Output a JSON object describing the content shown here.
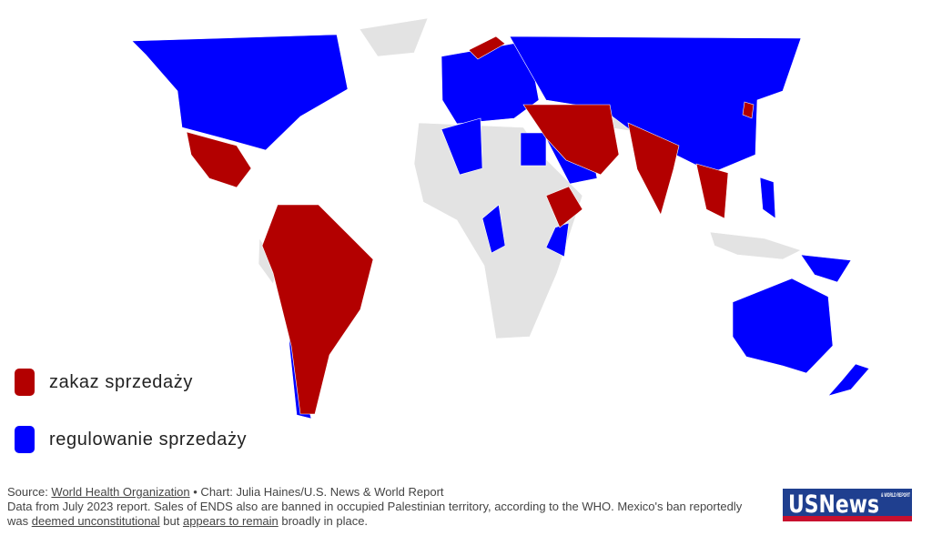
{
  "legend": [
    {
      "label": "zakaz sprzedaży",
      "color": "#b30000"
    },
    {
      "label": "regulowanie sprzedaży",
      "color": "#0000ff"
    }
  ],
  "footer": {
    "line1": [
      "Source: ",
      "World Health Organization",
      " • Chart: Julia Haines/U.S. News & World Report"
    ],
    "line2": [
      "Data from July 2023 report. Sales of ENDS also are banned in occupied Palestinian territory, according to the WHO. Mexico's ban reportedly was ",
      "deemed unconstitutional",
      " but ",
      "appears to remain",
      " broadly in place."
    ]
  },
  "logo": {
    "main": "USNews",
    "sub": "& WORLD REPORT"
  }
}
